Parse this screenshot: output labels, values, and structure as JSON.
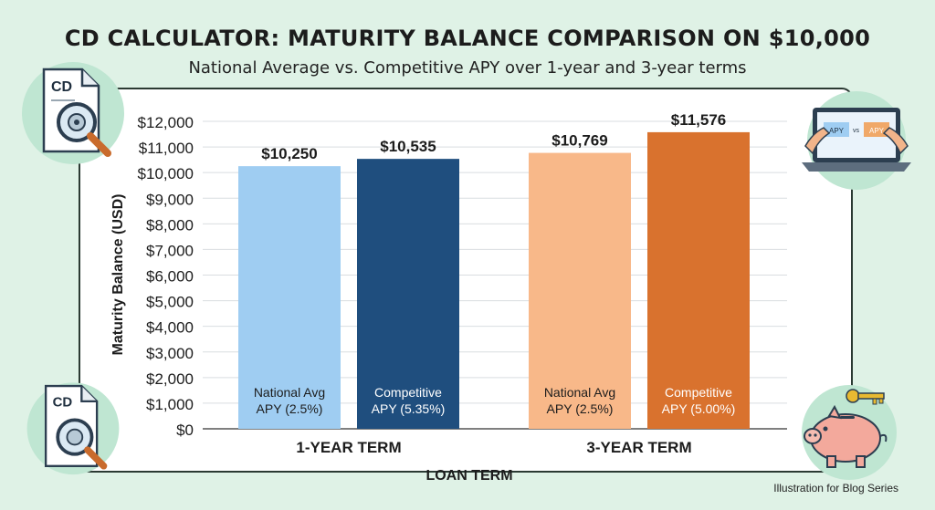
{
  "header": {
    "title": "CD CALCULATOR: MATURITY BALANCE COMPARISON ON $10,000",
    "subtitle": "National Average vs. Competitive APY over 1-year and 3-year terms"
  },
  "footer": {
    "note": "Illustration for Blog Series"
  },
  "decorations": {
    "top_left_doc_label": "CD",
    "bottom_left_doc_label": "CD",
    "laptop_left_label": "APY",
    "laptop_vs_label": "vs",
    "laptop_right_label": "APY",
    "icons": [
      "cd-document-magnifier-icon",
      "laptop-apy-comparison-icon",
      "cd-document-magnifier-icon",
      "piggy-bank-key-icon"
    ]
  },
  "chart_data": {
    "type": "bar",
    "title": "CD CALCULATOR: MATURITY BALANCE COMPARISON ON $10,000",
    "subtitle": "National Average vs. Competitive APY over 1-year and 3-year terms",
    "xlabel": "LOAN TERM",
    "ylabel": "Maturity Balance (USD)",
    "ylim": [
      0,
      12000
    ],
    "yticks": [
      0,
      1000,
      2000,
      3000,
      4000,
      5000,
      6000,
      7000,
      8000,
      9000,
      10000,
      11000,
      12000
    ],
    "ytick_labels": [
      "$0",
      "$1,000",
      "$2,000",
      "$3,000",
      "$4,000",
      "$5,000",
      "$6,000",
      "$7,000",
      "$8,000",
      "$9,000",
      "$10,000",
      "$11,000",
      "$12,000"
    ],
    "grid": true,
    "groups": [
      {
        "label": "1-YEAR TERM",
        "bars": [
          {
            "label_line1": "National Avg",
            "label_line2": "APY (2.5%)",
            "value": 10250,
            "value_label": "$10,250",
            "color": "#9fcdf2",
            "text_color": "#1c1c1c"
          },
          {
            "label_line1": "Competitive",
            "label_line2": "APY (5.35%)",
            "value": 10535,
            "value_label": "$10,535",
            "color": "#1f4e7e",
            "text_color": "#ffffff"
          }
        ]
      },
      {
        "label": "3-YEAR TERM",
        "bars": [
          {
            "label_line1": "National Avg",
            "label_line2": "APY (2.5%)",
            "value": 10769,
            "value_label": "$10,769",
            "color": "#f8b889",
            "text_color": "#1c1c1c"
          },
          {
            "label_line1": "Competitive",
            "label_line2": "APY (5.00%)",
            "value": 11576,
            "value_label": "$11,576",
            "color": "#d9722e",
            "text_color": "#ffffff"
          }
        ]
      }
    ]
  }
}
